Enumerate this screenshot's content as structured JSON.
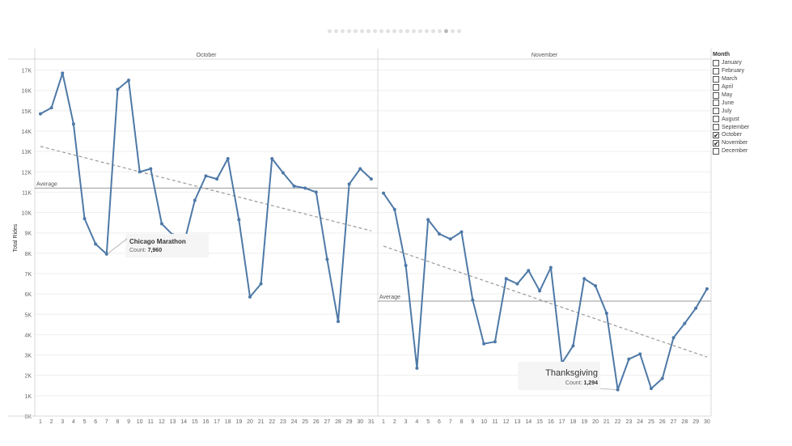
{
  "pager": {
    "count": 21,
    "active_index": 18
  },
  "legend": {
    "title": "Month",
    "items": [
      {
        "label": "January",
        "checked": false
      },
      {
        "label": "February",
        "checked": false
      },
      {
        "label": "March",
        "checked": false
      },
      {
        "label": "April",
        "checked": false
      },
      {
        "label": "May",
        "checked": false
      },
      {
        "label": "June",
        "checked": false
      },
      {
        "label": "July",
        "checked": false
      },
      {
        "label": "August",
        "checked": false
      },
      {
        "label": "September",
        "checked": false
      },
      {
        "label": "October",
        "checked": true
      },
      {
        "label": "November",
        "checked": true
      },
      {
        "label": "December",
        "checked": false
      }
    ]
  },
  "colors": {
    "line": "#4e79a7",
    "average": "#9a9a9a",
    "trend": "#9a9a9a",
    "grid": "#eeeeee",
    "tooltip_bg": "#f5f5f5"
  },
  "chart_data": {
    "type": "line",
    "ylabel": "Total Rides",
    "ylim": [
      0,
      17500
    ],
    "yticks": [
      "0K",
      "1K",
      "2K",
      "3K",
      "4K",
      "5K",
      "6K",
      "7K",
      "8K",
      "9K",
      "10K",
      "11K",
      "12K",
      "13K",
      "14K",
      "15K",
      "16K",
      "17K"
    ],
    "average_label": "Average",
    "grid": true,
    "panels": [
      {
        "name": "October",
        "x": [
          1,
          2,
          3,
          4,
          5,
          6,
          7,
          8,
          9,
          10,
          11,
          12,
          13,
          14,
          15,
          16,
          17,
          18,
          19,
          20,
          21,
          22,
          23,
          24,
          25,
          26,
          27,
          28,
          29,
          30,
          31
        ],
        "values": [
          14850,
          15150,
          16850,
          14350,
          9700,
          8450,
          7960,
          16050,
          16500,
          12000,
          12150,
          9450,
          8900,
          8450,
          10600,
          11800,
          11650,
          12650,
          9650,
          5850,
          6500,
          12650,
          11950,
          11300,
          11200,
          11000,
          7700,
          4650,
          11400,
          12150,
          11650
        ],
        "average": 11200,
        "trend": [
          13250,
          9100
        ],
        "annotation": {
          "title": "Chicago Marathon",
          "count_label": "Count:",
          "count_value": "7,960",
          "day": 7
        }
      },
      {
        "name": "November",
        "x": [
          1,
          2,
          3,
          4,
          5,
          6,
          7,
          8,
          9,
          10,
          11,
          12,
          13,
          14,
          15,
          16,
          17,
          18,
          19,
          20,
          21,
          22,
          23,
          24,
          25,
          26,
          27,
          28,
          29,
          30
        ],
        "values": [
          10950,
          10150,
          7400,
          2350,
          9650,
          8950,
          8700,
          9050,
          5700,
          3550,
          3650,
          6750,
          6500,
          7150,
          6150,
          7300,
          2600,
          3450,
          6750,
          6400,
          5050,
          1294,
          2800,
          3050,
          1350,
          1850,
          3850,
          4550,
          5300,
          6250
        ],
        "average": 5650,
        "trend": [
          8350,
          2900
        ],
        "annotation": {
          "title": "Thanksgiving",
          "count_label": "Count:",
          "count_value": "1,294",
          "day": 22
        }
      }
    ]
  }
}
